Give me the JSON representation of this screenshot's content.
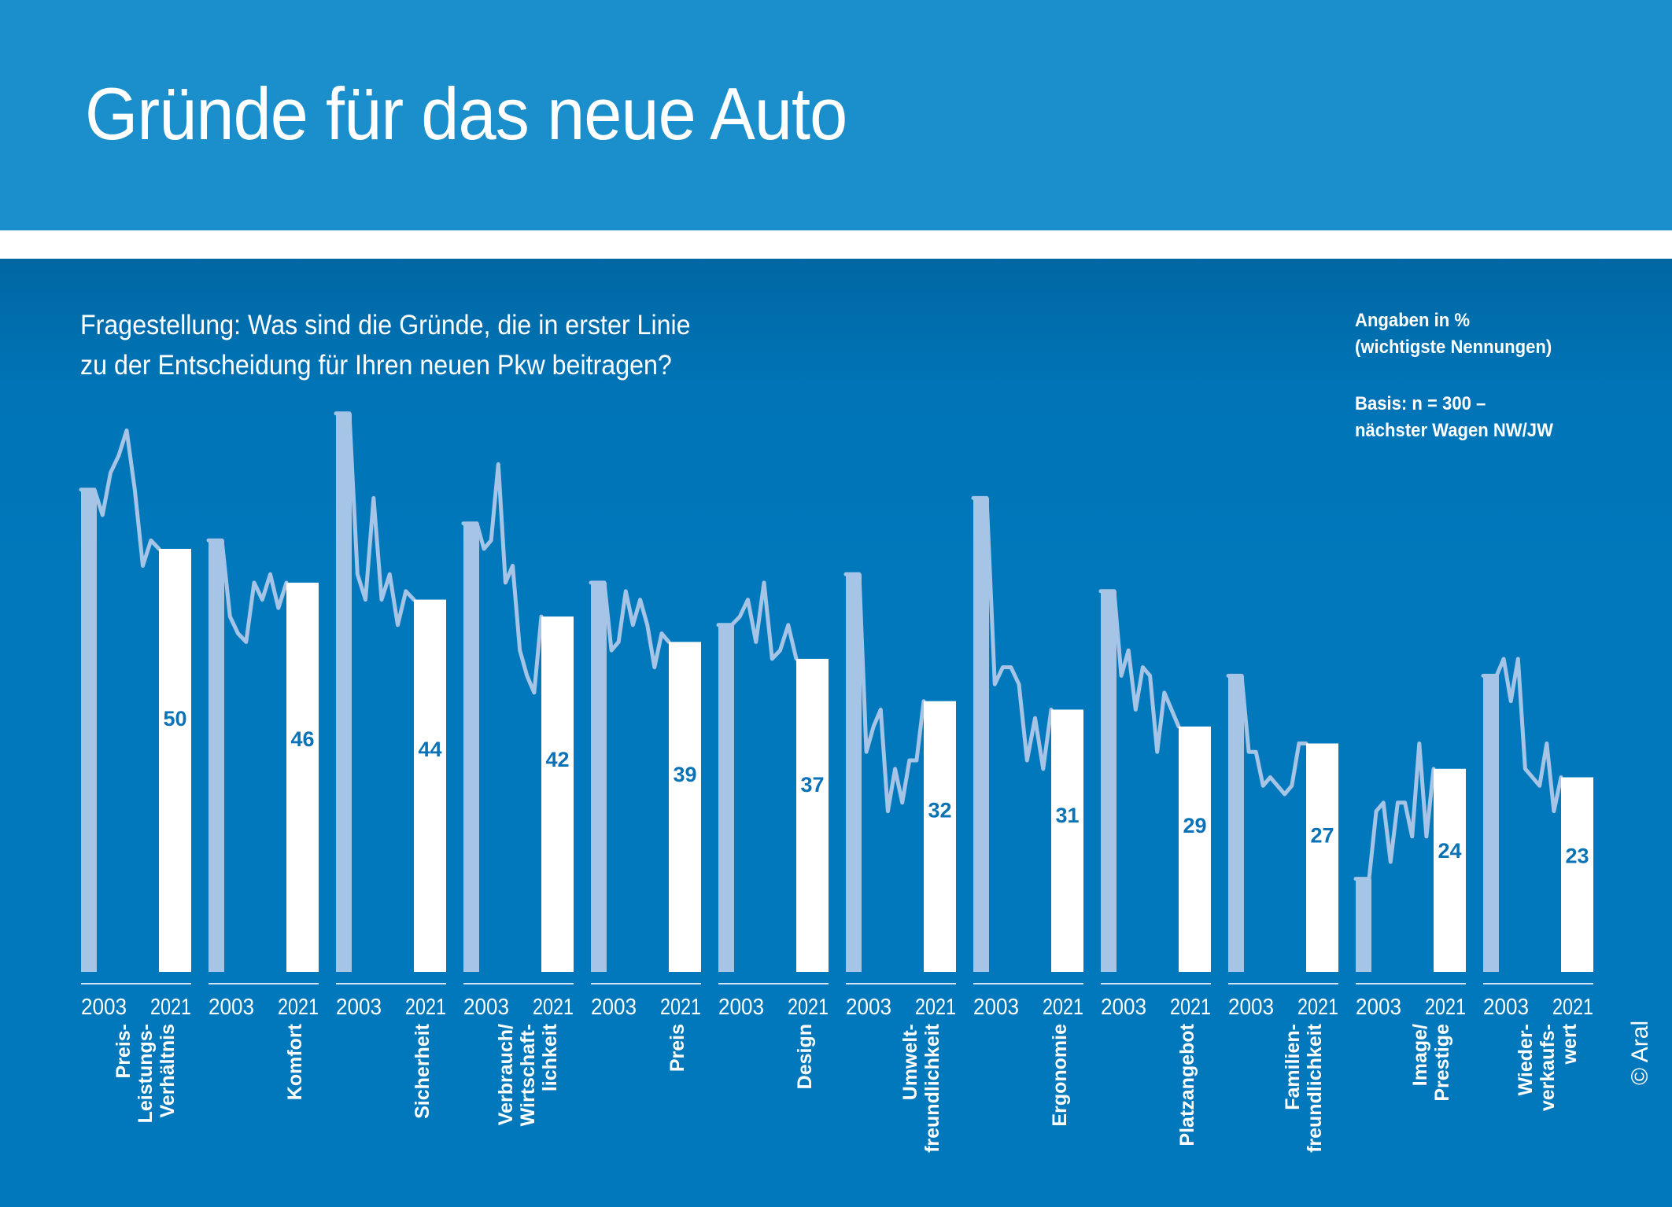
{
  "header": {
    "title": "Gründe für das neue Auto"
  },
  "question": {
    "line1": "Fragestellung: Was sind die Gründe, die in erster Linie",
    "line2": "zu der Entscheidung für Ihren neuen Pkw beitragen?"
  },
  "note": {
    "line1": "Angaben in %",
    "line2": "(wichtigste Nennungen)",
    "line3": "Basis: n = 300 –",
    "line4": "nächster Wagen NW/JW"
  },
  "copyright": "© Aral",
  "colors": {
    "header_bg": "#1a8fcb",
    "panel_bg": "#0078bb",
    "bar_2003": "#a5c4e6",
    "bar_2021": "#ffffff",
    "trend_line": "#a5c4e6",
    "value_label": "#0a72b5"
  },
  "chart_data": {
    "type": "bar",
    "title": "Gründe für das neue Auto",
    "subtitle": "Fragestellung: Was sind die Gründe, die in erster Linie zu der Entscheidung für Ihren neuen Pkw beitragen?",
    "unit": "Angaben in % (wichtigste Nennungen)",
    "xlabel": "",
    "ylabel": "",
    "ylim": [
      0,
      70
    ],
    "grid": false,
    "legend": "none",
    "year_labels": [
      "2003",
      "2021"
    ],
    "categories": [
      {
        "label_lines": [
          "Preis-",
          "Leistungs-",
          "Verhältnis"
        ]
      },
      {
        "label_lines": [
          "Komfort"
        ]
      },
      {
        "label_lines": [
          "Sicherheit"
        ]
      },
      {
        "label_lines": [
          "Verbrauch/",
          "Wirtschaft-",
          "lichkeit"
        ]
      },
      {
        "label_lines": [
          "Preis"
        ]
      },
      {
        "label_lines": [
          "Design"
        ]
      },
      {
        "label_lines": [
          "Umwelt-",
          "freundlichkeit"
        ]
      },
      {
        "label_lines": [
          "Ergonomie"
        ]
      },
      {
        "label_lines": [
          "Platzangebot"
        ]
      },
      {
        "label_lines": [
          "Familien-",
          "freundlichkeit"
        ]
      },
      {
        "label_lines": [
          "Image/",
          "Prestige"
        ]
      },
      {
        "label_lines": [
          "Wieder-",
          "verkaufs-",
          "wert"
        ]
      }
    ],
    "series": [
      {
        "name": "2003",
        "values": [
          57,
          51,
          66,
          53,
          46,
          41,
          47,
          56,
          45,
          35,
          11,
          35
        ],
        "labeled": false
      },
      {
        "name": "2021",
        "values": [
          50,
          46,
          44,
          42,
          39,
          37,
          32,
          31,
          29,
          27,
          24,
          23
        ],
        "labeled": true
      }
    ],
    "trend_lines_2003_to_2021": [
      [
        57,
        54,
        59,
        61,
        64,
        57,
        48,
        51,
        50
      ],
      [
        51,
        42,
        40,
        39,
        46,
        44,
        47,
        43,
        46
      ],
      [
        66,
        47,
        44,
        56,
        44,
        47,
        41,
        45,
        44
      ],
      [
        53,
        50,
        51,
        60,
        46,
        48,
        38,
        35,
        33,
        42
      ],
      [
        46,
        38,
        39,
        45,
        41,
        44,
        41,
        36,
        40,
        39
      ],
      [
        41,
        42,
        44,
        39,
        46,
        37,
        38,
        41,
        37
      ],
      [
        47,
        26,
        29,
        31,
        19,
        24,
        20,
        25,
        25,
        32
      ],
      [
        56,
        34,
        36,
        36,
        34,
        25,
        30,
        24,
        31
      ],
      [
        45,
        35,
        38,
        31,
        36,
        35,
        26,
        33,
        31,
        29
      ],
      [
        35,
        26,
        26,
        22,
        23,
        22,
        21,
        22,
        27,
        27
      ],
      [
        11,
        19,
        20,
        13,
        20,
        20,
        16,
        27,
        16,
        24
      ],
      [
        35,
        37,
        32,
        37,
        24,
        23,
        22,
        27,
        19,
        23
      ]
    ]
  }
}
